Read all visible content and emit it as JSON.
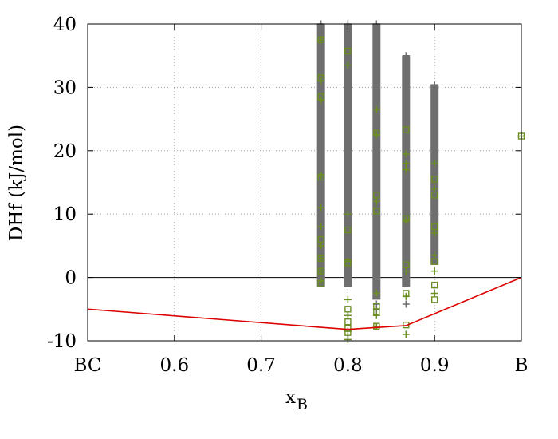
{
  "chart_data": {
    "type": "scatter",
    "title": "",
    "xlabel_main": "x",
    "xlabel_sub": "B",
    "ylabel": "DHf (kJ/mol)",
    "xlim": [
      0.5,
      1.0
    ],
    "ylim": [
      -10,
      40
    ],
    "grid": true,
    "legend": "none",
    "x_ticks": [
      {
        "value": 0.5,
        "label": "BC"
      },
      {
        "value": 0.6,
        "label": "0.6"
      },
      {
        "value": 0.7,
        "label": "0.7"
      },
      {
        "value": 0.8,
        "label": "0.8"
      },
      {
        "value": 0.9,
        "label": "0.9"
      },
      {
        "value": 1.0,
        "label": "B"
      }
    ],
    "y_ticks": [
      {
        "value": -10,
        "label": "-10"
      },
      {
        "value": 0,
        "label": "0"
      },
      {
        "value": 10,
        "label": "10"
      },
      {
        "value": 20,
        "label": "20"
      },
      {
        "value": 30,
        "label": "30"
      },
      {
        "value": 40,
        "label": "40"
      }
    ],
    "zero_line": 0,
    "colors": {
      "gray_series": "#6e6e6e",
      "green_series": "#6b8e23",
      "hull": "#dd0000",
      "grid": "#a0a0a0"
    },
    "gray_bands": [
      {
        "x": 0.769,
        "ymin": -1.5,
        "ymax": 40
      },
      {
        "x": 0.8,
        "ymin": -1.5,
        "ymax": 40
      },
      {
        "x": 0.833,
        "ymin": -3.5,
        "ymax": 40
      },
      {
        "x": 0.867,
        "ymin": -1.5,
        "ymax": 35
      },
      {
        "x": 0.9,
        "ymin": 2.0,
        "ymax": 30.5
      }
    ],
    "series": [
      {
        "marker": "plus",
        "color": "gray",
        "points": [
          [
            0.769,
            40
          ],
          [
            0.8,
            40
          ],
          [
            0.833,
            40
          ],
          [
            0.867,
            35
          ],
          [
            0.867,
            34.5
          ],
          [
            0.9,
            30.3
          ],
          [
            0.9,
            29
          ],
          [
            0.9,
            28
          ],
          [
            0.867,
            -4.2
          ],
          [
            0.833,
            -5
          ],
          [
            0.833,
            -4.2
          ]
        ]
      },
      {
        "marker": "plus",
        "color": "green",
        "points": [
          [
            0.769,
            37.5
          ],
          [
            0.769,
            31
          ],
          [
            0.769,
            28
          ],
          [
            0.769,
            16
          ],
          [
            0.769,
            11
          ],
          [
            0.769,
            8
          ],
          [
            0.769,
            5
          ],
          [
            0.769,
            3
          ],
          [
            0.769,
            1
          ],
          [
            0.769,
            -0.5
          ],
          [
            0.8,
            33.5
          ],
          [
            0.8,
            10
          ],
          [
            0.8,
            2.5
          ],
          [
            0.8,
            -3.5
          ],
          [
            0.8,
            -6
          ],
          [
            0.8,
            -8.5
          ],
          [
            0.8,
            -9.8
          ],
          [
            0.833,
            26.5
          ],
          [
            0.833,
            22.5
          ],
          [
            0.833,
            12
          ],
          [
            0.833,
            -2.5
          ],
          [
            0.833,
            -6
          ],
          [
            0.833,
            -7.8
          ],
          [
            0.867,
            19.5
          ],
          [
            0.867,
            18
          ],
          [
            0.867,
            17
          ],
          [
            0.867,
            9
          ],
          [
            0.867,
            1
          ],
          [
            0.867,
            -3
          ],
          [
            0.867,
            -9
          ],
          [
            0.9,
            18
          ],
          [
            0.9,
            14
          ],
          [
            0.9,
            7
          ],
          [
            0.9,
            3.5
          ],
          [
            0.9,
            1
          ],
          [
            0.9,
            -2.5
          ],
          [
            1.0,
            22.3
          ]
        ]
      },
      {
        "marker": "square",
        "color": "green",
        "points": [
          [
            0.769,
            37.5
          ],
          [
            0.769,
            31.5
          ],
          [
            0.769,
            28.5
          ],
          [
            0.769,
            15.8
          ],
          [
            0.769,
            6
          ],
          [
            0.769,
            3
          ],
          [
            0.769,
            1
          ],
          [
            0.769,
            -1
          ],
          [
            0.8,
            35.7
          ],
          [
            0.8,
            7.5
          ],
          [
            0.8,
            2.3
          ],
          [
            0.8,
            -5
          ],
          [
            0.8,
            -7
          ],
          [
            0.8,
            -8
          ],
          [
            0.8,
            -8.7
          ],
          [
            0.833,
            22.8
          ],
          [
            0.833,
            13
          ],
          [
            0.833,
            10.5
          ],
          [
            0.833,
            -4.5
          ],
          [
            0.833,
            -5.5
          ],
          [
            0.833,
            -7.7
          ],
          [
            0.867,
            23.3
          ],
          [
            0.867,
            9.3
          ],
          [
            0.867,
            2
          ],
          [
            0.867,
            -2.5
          ],
          [
            0.867,
            -7.5
          ],
          [
            0.9,
            15.5
          ],
          [
            0.9,
            13
          ],
          [
            0.9,
            8
          ],
          [
            0.9,
            2.5
          ],
          [
            0.9,
            -1.2
          ],
          [
            0.9,
            -3.5
          ],
          [
            1.0,
            22.3
          ]
        ]
      },
      {
        "name": "hull",
        "type": "line",
        "color": "red",
        "points": [
          [
            0.5,
            -5.0
          ],
          [
            0.8,
            -8.2
          ],
          [
            0.833,
            -7.9
          ],
          [
            0.867,
            -7.6
          ],
          [
            1.0,
            0.0
          ]
        ]
      }
    ]
  }
}
